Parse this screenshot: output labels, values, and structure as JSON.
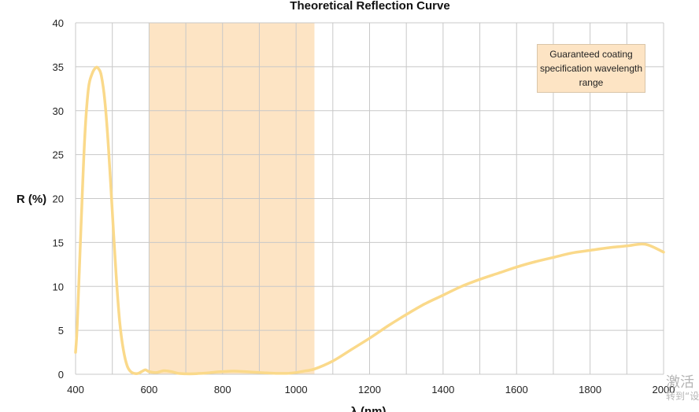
{
  "chart_data": {
    "type": "line",
    "title": "Theoretical Reflection Curve",
    "xlabel": "λ (nm)",
    "ylabel": "R (%)",
    "xlim": [
      400,
      2000
    ],
    "ylim": [
      0,
      40
    ],
    "xticks": [
      400,
      600,
      800,
      1000,
      1200,
      1400,
      1600,
      1800,
      2000
    ],
    "yticks": [
      0,
      5,
      10,
      15,
      20,
      25,
      30,
      35,
      40
    ],
    "grid": true,
    "shaded_band": {
      "x_start": 600,
      "x_end": 1050,
      "color": "#fde4c4"
    },
    "legend": {
      "placement": "top-right",
      "text": "Guaranteed coating specification wavelength range"
    },
    "series": [
      {
        "color": "#fad98a",
        "x": [
          400,
          405,
          415,
          425,
          435,
          445,
          455,
          462,
          470,
          480,
          490,
          500,
          510,
          520,
          530,
          540,
          550,
          560,
          570,
          580,
          590,
          600,
          620,
          640,
          660,
          680,
          700,
          720,
          740,
          760,
          780,
          800,
          820,
          840,
          860,
          880,
          900,
          920,
          940,
          960,
          980,
          1000,
          1020,
          1050,
          1100,
          1150,
          1200,
          1250,
          1300,
          1350,
          1400,
          1450,
          1500,
          1550,
          1600,
          1650,
          1700,
          1750,
          1800,
          1850,
          1900,
          1950,
          2000
        ],
        "y": [
          2.5,
          6,
          17,
          27,
          32.5,
          34.2,
          34.9,
          34.8,
          34,
          31,
          25.5,
          18.5,
          11.5,
          6,
          2.8,
          1,
          0.3,
          0.1,
          0.1,
          0.3,
          0.5,
          0.3,
          0.2,
          0.4,
          0.3,
          0.1,
          0.05,
          0.05,
          0.1,
          0.15,
          0.25,
          0.3,
          0.35,
          0.35,
          0.3,
          0.25,
          0.2,
          0.15,
          0.12,
          0.1,
          0.12,
          0.2,
          0.35,
          0.6,
          1.5,
          2.8,
          4.1,
          5.5,
          6.8,
          8,
          9,
          10,
          10.8,
          11.5,
          12.2,
          12.8,
          13.3,
          13.8,
          14.1,
          14.4,
          14.6,
          14.8,
          13.9
        ]
      }
    ]
  },
  "watermark": {
    "main": "激活",
    "sub": "转到“设"
  }
}
